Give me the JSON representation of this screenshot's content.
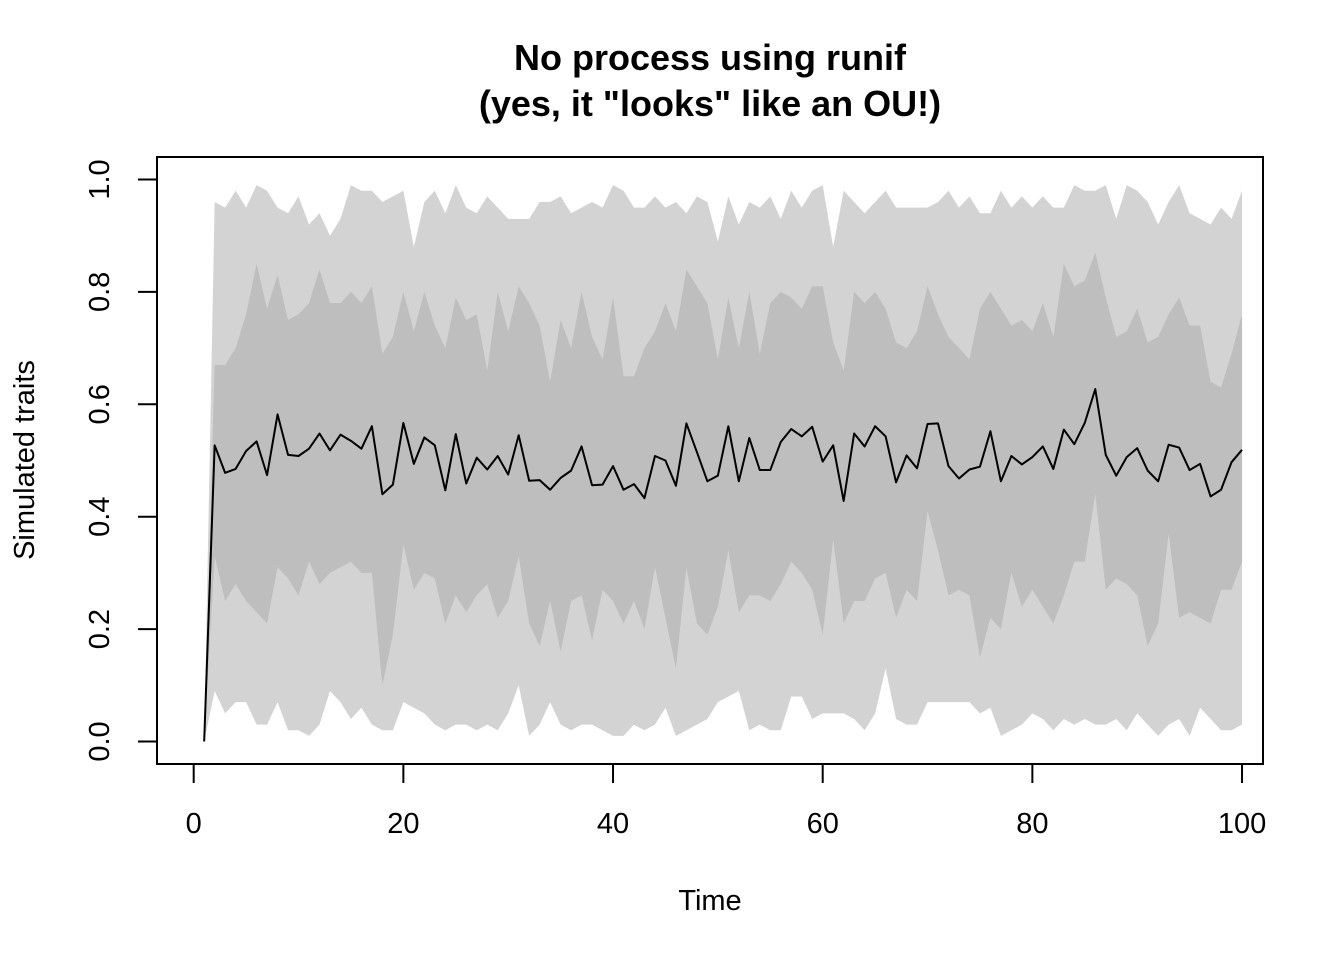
{
  "chart_data": {
    "type": "line",
    "title": "No process using runif",
    "subtitle": "(yes, it \"looks\" like an OU!)",
    "xlabel": "Time",
    "ylabel": "Simulated traits",
    "xlim": [
      -3.5,
      102
    ],
    "ylim": [
      -0.04,
      1.04
    ],
    "grid": false,
    "legend": "none",
    "x_ticks": [
      0,
      20,
      40,
      60,
      80,
      100
    ],
    "x_tick_labels": [
      "0",
      "20",
      "40",
      "60",
      "80",
      "100"
    ],
    "y_ticks": [
      0.0,
      0.2,
      0.4,
      0.6,
      0.8,
      1.0
    ],
    "y_tick_labels": [
      "0.0",
      "0.2",
      "0.4",
      "0.6",
      "0.8",
      "1.0"
    ],
    "colors": {
      "outer_band": "#d3d3d3",
      "inner_band": "#bebebe",
      "line": "#000000",
      "frame": "#000000"
    },
    "x": [
      1,
      2,
      3,
      4,
      5,
      6,
      7,
      8,
      9,
      10,
      11,
      12,
      13,
      14,
      15,
      16,
      17,
      18,
      19,
      20,
      21,
      22,
      23,
      24,
      25,
      26,
      27,
      28,
      29,
      30,
      31,
      32,
      33,
      34,
      35,
      36,
      37,
      38,
      39,
      40,
      41,
      42,
      43,
      44,
      45,
      46,
      47,
      48,
      49,
      50,
      51,
      52,
      53,
      54,
      55,
      56,
      57,
      58,
      59,
      60,
      61,
      62,
      63,
      64,
      65,
      66,
      67,
      68,
      69,
      70,
      71,
      72,
      73,
      74,
      75,
      76,
      77,
      78,
      79,
      80,
      81,
      82,
      83,
      84,
      85,
      86,
      87,
      88,
      89,
      90,
      91,
      92,
      93,
      94,
      95,
      96,
      97,
      98,
      99,
      100
    ],
    "series": [
      {
        "values": [
          0,
          0.527,
          0.478,
          0.485,
          0.517,
          0.534,
          0.474,
          0.582,
          0.51,
          0.508,
          0.521,
          0.548,
          0.518,
          0.546,
          0.535,
          0.521,
          0.561,
          0.44,
          0.457,
          0.567,
          0.494,
          0.541,
          0.527,
          0.447,
          0.547,
          0.459,
          0.505,
          0.484,
          0.508,
          0.475,
          0.545,
          0.464,
          0.465,
          0.448,
          0.469,
          0.482,
          0.525,
          0.456,
          0.457,
          0.49,
          0.448,
          0.458,
          0.433,
          0.508,
          0.5,
          0.455,
          0.566,
          0.515,
          0.463,
          0.473,
          0.561,
          0.463,
          0.54,
          0.483,
          0.483,
          0.533,
          0.556,
          0.543,
          0.56,
          0.498,
          0.527,
          0.428,
          0.548,
          0.525,
          0.561,
          0.543,
          0.461,
          0.509,
          0.486,
          0.565,
          0.566,
          0.49,
          0.468,
          0.484,
          0.489,
          0.552,
          0.463,
          0.508,
          0.493,
          0.506,
          0.525,
          0.485,
          0.555,
          0.529,
          0.567,
          0.627,
          0.51,
          0.473,
          0.506,
          0.522,
          0.482,
          0.463,
          0.528,
          0.523,
          0.483,
          0.494,
          0.436,
          0.448,
          0.497,
          0.519
        ]
      }
    ],
    "bands": [
      {
        "level": "outer",
        "lower": [
          0,
          0.09,
          0.05,
          0.07,
          0.07,
          0.03,
          0.03,
          0.07,
          0.02,
          0.02,
          0.01,
          0.03,
          0.09,
          0.07,
          0.04,
          0.06,
          0.03,
          0.02,
          0.02,
          0.07,
          0.06,
          0.05,
          0.03,
          0.02,
          0.03,
          0.03,
          0.02,
          0.03,
          0.02,
          0.05,
          0.1,
          0.01,
          0.03,
          0.07,
          0.03,
          0.02,
          0.03,
          0.03,
          0.02,
          0.01,
          0.01,
          0.03,
          0.02,
          0.03,
          0.06,
          0.01,
          0.02,
          0.03,
          0.04,
          0.07,
          0.08,
          0.09,
          0.02,
          0.03,
          0.02,
          0.02,
          0.08,
          0.08,
          0.04,
          0.05,
          0.05,
          0.05,
          0.04,
          0.02,
          0.05,
          0.13,
          0.04,
          0.03,
          0.03,
          0.07,
          0.07,
          0.07,
          0.07,
          0.07,
          0.05,
          0.06,
          0.01,
          0.02,
          0.03,
          0.05,
          0.04,
          0.02,
          0.04,
          0.03,
          0.04,
          0.03,
          0.03,
          0.04,
          0.02,
          0.05,
          0.03,
          0.01,
          0.03,
          0.04,
          0.01,
          0.06,
          0.04,
          0.02,
          0.02,
          0.03
        ],
        "upper": [
          0,
          0.96,
          0.95,
          0.98,
          0.95,
          0.99,
          0.98,
          0.95,
          0.94,
          0.97,
          0.92,
          0.94,
          0.9,
          0.93,
          0.99,
          0.98,
          0.98,
          0.96,
          0.97,
          0.98,
          0.88,
          0.96,
          0.98,
          0.94,
          0.99,
          0.95,
          0.94,
          0.97,
          0.95,
          0.93,
          0.93,
          0.93,
          0.96,
          0.96,
          0.97,
          0.94,
          0.95,
          0.96,
          0.95,
          0.99,
          0.98,
          0.95,
          0.95,
          0.97,
          0.95,
          0.96,
          0.94,
          0.97,
          0.96,
          0.89,
          0.97,
          0.92,
          0.96,
          0.95,
          0.97,
          0.93,
          0.98,
          0.95,
          0.98,
          0.99,
          0.88,
          0.98,
          0.96,
          0.94,
          0.96,
          0.98,
          0.95,
          0.95,
          0.95,
          0.95,
          0.96,
          0.98,
          0.95,
          0.97,
          0.94,
          0.94,
          0.98,
          0.95,
          0.97,
          0.95,
          0.97,
          0.95,
          0.95,
          0.99,
          0.98,
          0.98,
          0.99,
          0.93,
          0.99,
          0.98,
          0.96,
          0.92,
          0.96,
          0.99,
          0.94,
          0.93,
          0.92,
          0.95,
          0.93,
          0.98
        ]
      },
      {
        "level": "inner",
        "lower": [
          0,
          0.33,
          0.25,
          0.28,
          0.25,
          0.23,
          0.21,
          0.31,
          0.29,
          0.26,
          0.32,
          0.28,
          0.3,
          0.31,
          0.32,
          0.3,
          0.3,
          0.1,
          0.19,
          0.35,
          0.27,
          0.3,
          0.29,
          0.21,
          0.26,
          0.23,
          0.26,
          0.28,
          0.22,
          0.25,
          0.33,
          0.21,
          0.17,
          0.25,
          0.16,
          0.25,
          0.26,
          0.18,
          0.27,
          0.25,
          0.21,
          0.25,
          0.2,
          0.31,
          0.22,
          0.13,
          0.31,
          0.21,
          0.19,
          0.24,
          0.34,
          0.23,
          0.26,
          0.26,
          0.25,
          0.28,
          0.32,
          0.3,
          0.27,
          0.19,
          0.36,
          0.21,
          0.25,
          0.25,
          0.29,
          0.3,
          0.22,
          0.27,
          0.25,
          0.41,
          0.34,
          0.26,
          0.27,
          0.26,
          0.15,
          0.22,
          0.2,
          0.3,
          0.24,
          0.27,
          0.24,
          0.21,
          0.26,
          0.32,
          0.32,
          0.44,
          0.27,
          0.29,
          0.28,
          0.26,
          0.17,
          0.21,
          0.37,
          0.22,
          0.23,
          0.22,
          0.21,
          0.27,
          0.27,
          0.32
        ],
        "upper": [
          0,
          0.67,
          0.67,
          0.7,
          0.76,
          0.85,
          0.77,
          0.83,
          0.75,
          0.76,
          0.78,
          0.84,
          0.78,
          0.78,
          0.8,
          0.78,
          0.81,
          0.69,
          0.72,
          0.8,
          0.73,
          0.8,
          0.74,
          0.7,
          0.79,
          0.75,
          0.76,
          0.66,
          0.8,
          0.73,
          0.81,
          0.78,
          0.74,
          0.64,
          0.75,
          0.7,
          0.8,
          0.72,
          0.68,
          0.79,
          0.65,
          0.65,
          0.7,
          0.73,
          0.78,
          0.73,
          0.84,
          0.81,
          0.78,
          0.68,
          0.79,
          0.7,
          0.8,
          0.69,
          0.78,
          0.8,
          0.79,
          0.77,
          0.81,
          0.81,
          0.71,
          0.66,
          0.8,
          0.78,
          0.8,
          0.77,
          0.71,
          0.7,
          0.73,
          0.81,
          0.76,
          0.72,
          0.7,
          0.68,
          0.77,
          0.8,
          0.77,
          0.74,
          0.75,
          0.73,
          0.78,
          0.72,
          0.85,
          0.81,
          0.82,
          0.87,
          0.79,
          0.72,
          0.73,
          0.77,
          0.71,
          0.72,
          0.76,
          0.79,
          0.74,
          0.74,
          0.64,
          0.63,
          0.69,
          0.76
        ]
      }
    ]
  }
}
